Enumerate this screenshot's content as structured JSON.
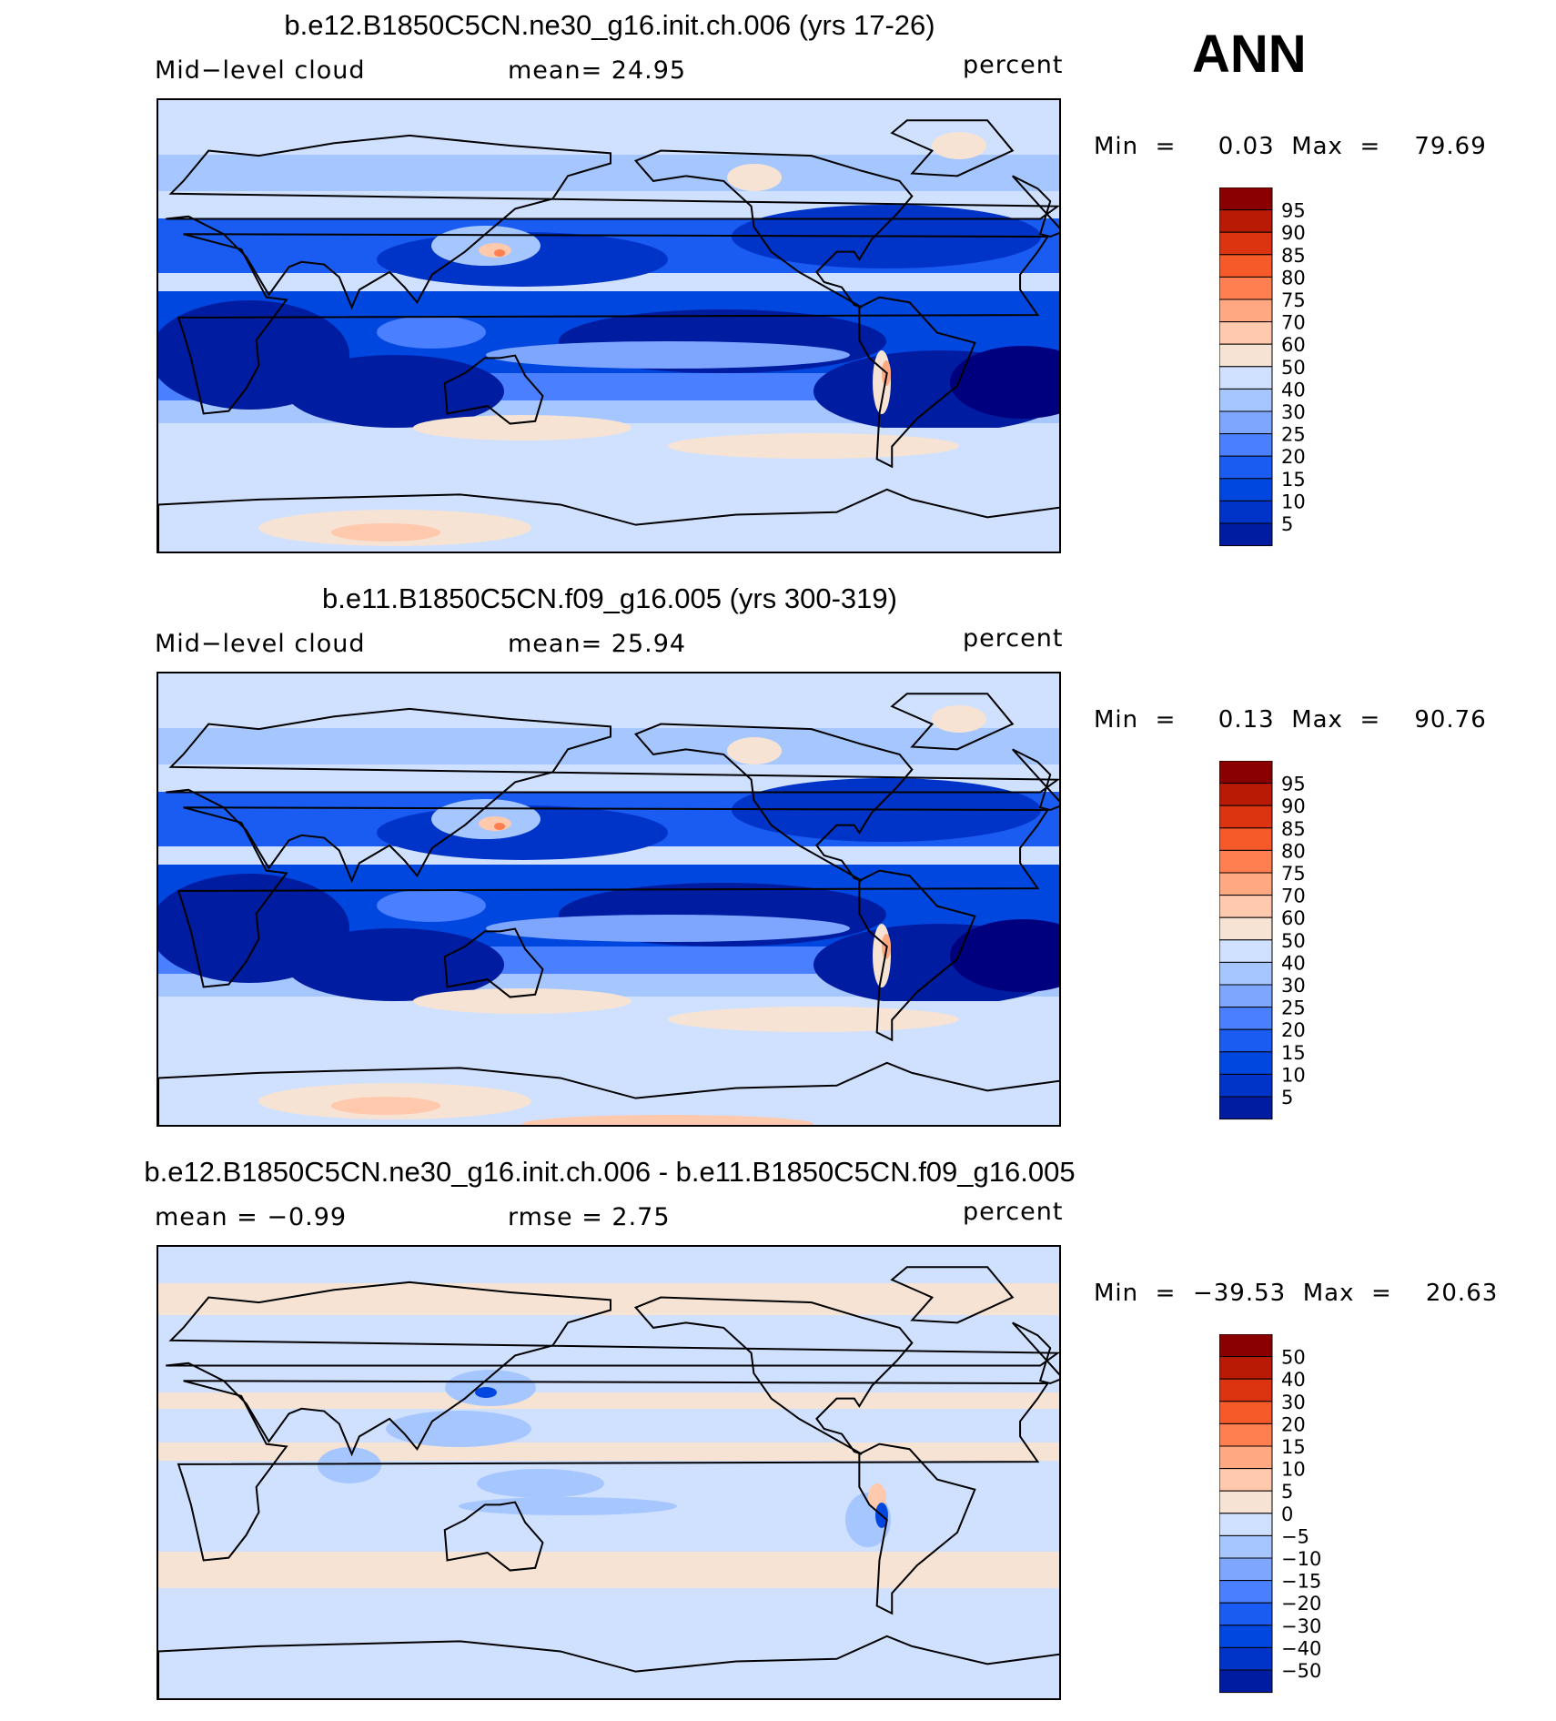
{
  "season": "ANN",
  "colors": {
    "levels": [
      "#00007e",
      "#001ca0",
      "#0033c8",
      "#0047e0",
      "#1a5cf2",
      "#4a80ff",
      "#7ea6ff",
      "#a6c6ff",
      "#cfe1ff",
      "#f6e3d3",
      "#ffc9ae",
      "#ffa882",
      "#ff7f50",
      "#f55a28",
      "#dc3410",
      "#b81a06",
      "#8a0000"
    ],
    "land_outline": "#000000"
  },
  "panels": [
    {
      "title": "b.e12.B1850C5CN.ne30_g16.init.ch.006 (yrs 17-26)",
      "left_label": "Mid−level  cloud",
      "mid_label": "mean=   24.95",
      "units": "percent",
      "minmax": "Min  =     0.03  Max  =    79.69",
      "colorbar_labels": [
        "95",
        "90",
        "85",
        "80",
        "75",
        "70",
        "60",
        "50",
        "40",
        "30",
        "25",
        "20",
        "15",
        "10",
        "5"
      ],
      "field_mean": 24.95,
      "field_min": 0.03,
      "field_max": 79.69
    },
    {
      "title": "b.e11.B1850C5CN.f09_g16.005 (yrs 300-319)",
      "left_label": "Mid−level  cloud",
      "mid_label": "mean=   25.94",
      "units": "percent",
      "minmax": "Min  =     0.13  Max  =    90.76",
      "colorbar_labels": [
        "95",
        "90",
        "85",
        "80",
        "75",
        "70",
        "60",
        "50",
        "40",
        "30",
        "25",
        "20",
        "15",
        "10",
        "5"
      ],
      "field_mean": 25.94,
      "field_min": 0.13,
      "field_max": 90.76
    },
    {
      "title": "b.e12.B1850C5CN.ne30_g16.init.ch.006 - b.e11.B1850C5CN.f09_g16.005",
      "left_label": "mean  =    −0.99",
      "mid_label": "rmse  =     2.75",
      "units": "percent",
      "minmax": "Min  =  −39.53  Max  =    20.63",
      "colorbar_labels": [
        "50",
        "40",
        "30",
        "20",
        "15",
        "10",
        "5",
        "0",
        "−5",
        "−10",
        "−15",
        "−20",
        "−30",
        "−40",
        "−50"
      ],
      "field_mean": -0.99,
      "field_rmse": 2.75,
      "field_min": -39.53,
      "field_max": 20.63
    }
  ]
}
